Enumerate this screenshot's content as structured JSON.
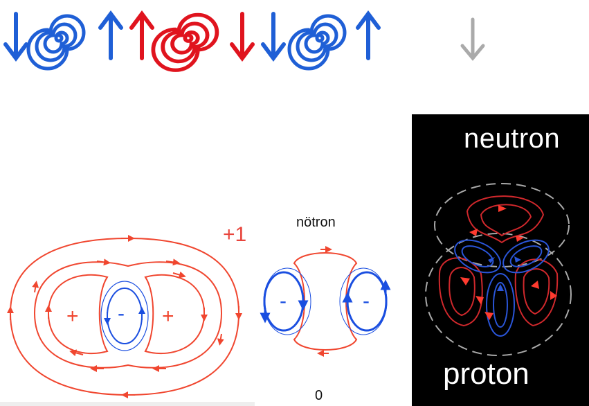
{
  "labels": {
    "plus_one": "+1",
    "notron": "nötron",
    "zero": "0",
    "neutron": "neutron",
    "proton": "proton"
  },
  "signs": {
    "left_plus": "+",
    "center_minus": "-",
    "right_plus": "+",
    "notron_left_minus": "-",
    "notron_right_minus": "-"
  },
  "colors": {
    "quark_blue": "#1f5fd6",
    "quark_red": "#e0141e",
    "field_red": "#f0462f",
    "field_blue": "#1a4ee0",
    "arrow_gray": "#aaaaaa",
    "panel_black": "#000000"
  },
  "top_row_icons": [
    "down-arrow-icon",
    "spiral-icon",
    "up-arrow-icon",
    "up-arrow-icon",
    "spiral-icon",
    "down-arrow-icon",
    "down-arrow-icon",
    "spiral-icon",
    "up-arrow-icon",
    "down-arrow-icon"
  ]
}
